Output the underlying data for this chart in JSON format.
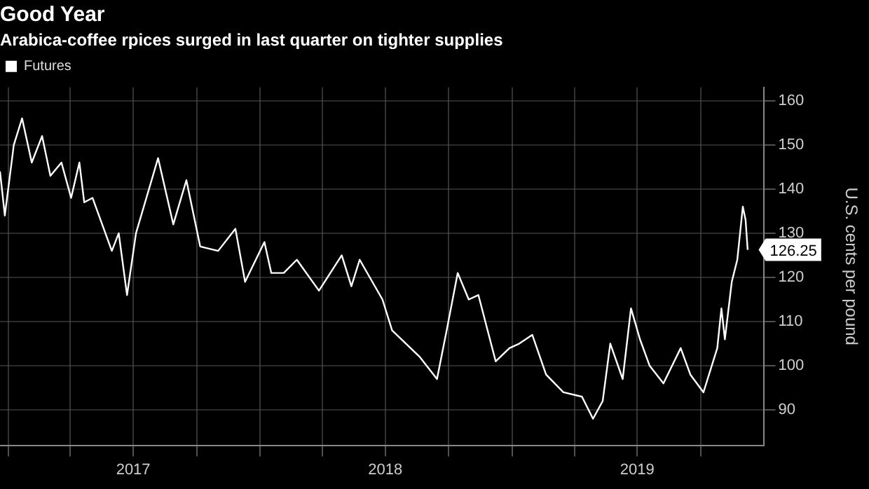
{
  "chart_data": {
    "type": "line",
    "title": "Good Year",
    "subtitle": "Arabica-coffee rpices surged in last quarter on tighter supplies",
    "ylabel": "U.S. cents per pound",
    "x": [
      "2016-12-20",
      "2016-12-27",
      "2017-01-09",
      "2017-01-21",
      "2017-02-04",
      "2017-02-19",
      "2017-03-03",
      "2017-03-19",
      "2017-04-02",
      "2017-04-14",
      "2017-04-21",
      "2017-05-03",
      "2017-05-31",
      "2017-06-10",
      "2017-06-22",
      "2017-07-05",
      "2017-08-06",
      "2017-08-28",
      "2017-09-16",
      "2017-10-06",
      "2017-11-01",
      "2017-11-26",
      "2017-12-10",
      "2018-01-07",
      "2018-01-17",
      "2018-02-04",
      "2018-02-23",
      "2018-03-27",
      "2018-04-29",
      "2018-05-13",
      "2018-05-25",
      "2018-06-27",
      "2018-07-11",
      "2018-08-20",
      "2018-09-14",
      "2018-09-28",
      "2018-10-14",
      "2018-10-30",
      "2018-11-13",
      "2018-12-08",
      "2018-12-28",
      "2019-01-11",
      "2019-01-30",
      "2019-02-19",
      "2019-03-16",
      "2019-04-12",
      "2019-04-28",
      "2019-05-12",
      "2019-05-23",
      "2019-06-10",
      "2019-06-22",
      "2019-07-05",
      "2019-07-19",
      "2019-08-08",
      "2019-09-02",
      "2019-09-16",
      "2019-10-05",
      "2019-10-25",
      "2019-10-31",
      "2019-11-05",
      "2019-11-15",
      "2019-11-23",
      "2019-12-01",
      "2019-12-05",
      "2019-12-08"
    ],
    "series": [
      {
        "name": "Futures",
        "color": "#ffffff",
        "values": [
          144,
          134,
          150,
          156,
          146,
          152,
          143,
          146,
          138,
          146,
          137,
          138,
          126,
          130,
          116,
          130,
          147,
          132,
          142,
          127,
          126,
          131,
          119,
          128,
          121,
          121,
          124,
          117,
          125,
          118,
          124,
          115,
          108,
          102,
          97,
          108,
          121,
          115,
          116,
          101,
          104,
          105,
          107,
          98,
          94,
          93,
          88,
          92,
          105,
          97,
          113,
          106,
          100,
          96,
          104,
          98,
          94,
          104,
          113,
          106,
          119,
          124,
          136,
          133,
          126.25
        ],
        "value_labels": [
          null,
          null,
          null,
          null,
          null,
          null,
          null,
          null,
          null,
          null,
          null,
          null,
          null,
          null,
          null,
          null,
          null,
          null,
          null,
          null,
          null,
          null,
          null,
          null,
          null,
          null,
          null,
          null,
          null,
          null,
          null,
          null,
          null,
          null,
          null,
          null,
          null,
          null,
          null,
          null,
          null,
          null,
          null,
          null,
          null,
          null,
          null,
          null,
          null,
          null,
          null,
          null,
          null,
          null,
          null,
          null,
          null,
          null,
          null,
          null,
          null,
          null,
          null,
          null,
          "126.25"
        ]
      }
    ],
    "xlim": [
      "2016-12-20",
      "2020-01-01"
    ],
    "xticks": [
      {
        "value": "2017-01-01",
        "label": null
      },
      {
        "value": "2017-04-01",
        "label": null
      },
      {
        "value": "2017-07-01",
        "label": "2017"
      },
      {
        "value": "2017-10-01",
        "label": null
      },
      {
        "value": "2018-01-01",
        "label": null
      },
      {
        "value": "2018-04-01",
        "label": null
      },
      {
        "value": "2018-07-01",
        "label": "2018"
      },
      {
        "value": "2018-10-01",
        "label": null
      },
      {
        "value": "2019-01-01",
        "label": null
      },
      {
        "value": "2019-04-01",
        "label": null
      },
      {
        "value": "2019-07-01",
        "label": "2019"
      },
      {
        "value": "2019-10-01",
        "label": null
      }
    ],
    "ylim": [
      82,
      163
    ],
    "yticks": [
      90,
      100,
      110,
      120,
      130,
      140,
      150,
      160
    ],
    "grid": true,
    "legend": "top left",
    "marker": "none",
    "line_style": "solid"
  }
}
